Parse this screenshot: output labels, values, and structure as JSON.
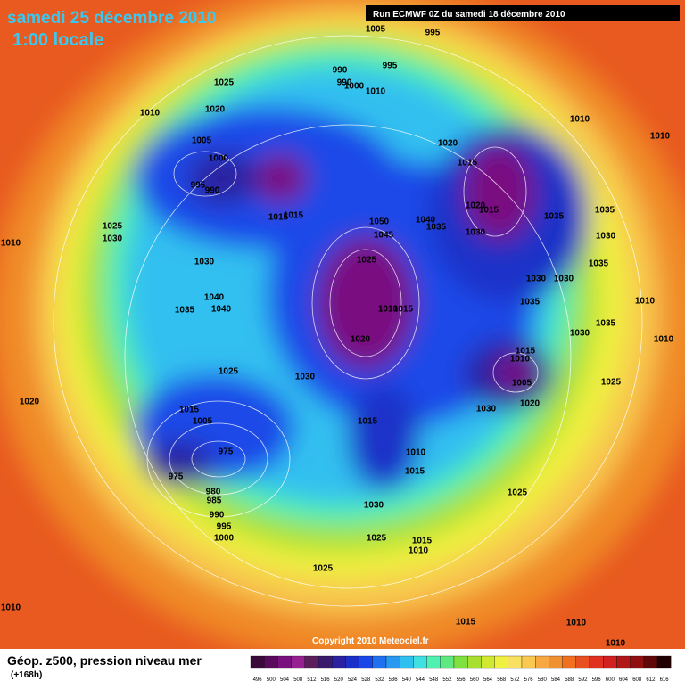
{
  "header": {
    "title": "samedi 25 décembre 2010",
    "subtitle": "1:00 locale",
    "run": "Run ECMWF 0Z du samedi 18 décembre 2010"
  },
  "copyright": "Copyright 2010 Meteociel.fr",
  "footer": {
    "title": "Géop. z500, pression niveau mer",
    "lead": "(+168h)"
  },
  "legend": {
    "levels": [
      496,
      500,
      504,
      508,
      512,
      516,
      520,
      524,
      528,
      532,
      536,
      540,
      544,
      548,
      552,
      556,
      560,
      564,
      568,
      572,
      576,
      580,
      584,
      588,
      592,
      596,
      600,
      604,
      608,
      612,
      616
    ],
    "colors": [
      "#3a0a3a",
      "#5a0a5a",
      "#7a1080",
      "#962090",
      "#5a1e5a",
      "#3a1a6a",
      "#2a20a0",
      "#1a30c8",
      "#1a48e8",
      "#2070f0",
      "#2898f0",
      "#30c0f0",
      "#40e0e0",
      "#50f0b0",
      "#60e880",
      "#80e040",
      "#a8e030",
      "#d0e830",
      "#f0f040",
      "#f8e060",
      "#f8c850",
      "#f8a840",
      "#f09030",
      "#f07020",
      "#e85020",
      "#e03020",
      "#d02020",
      "#b01818",
      "#901010",
      "#600808",
      "#200000"
    ]
  },
  "isobar_labels": [
    "1005",
    "995",
    "990",
    "995",
    "990",
    "1000",
    "1010",
    "1025",
    "1020",
    "1010",
    "1005",
    "1000",
    "995",
    "990",
    "1015",
    "1015",
    "1020",
    "1015",
    "1020",
    "1015",
    "1040",
    "1035",
    "1030",
    "1050",
    "1045",
    "1025",
    "1010",
    "1015",
    "1020",
    "1010",
    "1010",
    "1035",
    "1035",
    "1030",
    "1035",
    "1030",
    "1030",
    "1035",
    "1010",
    "1035",
    "1030",
    "1010",
    "1015",
    "1010",
    "1005",
    "1020",
    "1025",
    "1030",
    "1025",
    "1030",
    "1010",
    "1030",
    "1040",
    "1035",
    "1040",
    "1025",
    "1030",
    "1020",
    "1015",
    "1005",
    "1015",
    "1010",
    "1015",
    "975",
    "975",
    "980",
    "985",
    "990",
    "995",
    "1000",
    "1030",
    "1025",
    "1025",
    "1015",
    "1010",
    "1025",
    "1010",
    "1015",
    "1010",
    "1010"
  ]
}
